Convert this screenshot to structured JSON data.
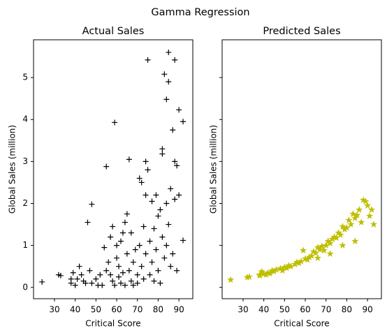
{
  "figure_title": "Gamma Regression",
  "chart_data": [
    {
      "type": "scatter",
      "title": "Actual Sales",
      "xlabel": "Critical Score",
      "ylabel": "Global Sales (million)",
      "xlim": [
        19.9,
        96.7
      ],
      "ylim": [
        -0.27,
        5.9
      ],
      "xticks": [
        30,
        40,
        50,
        60,
        70,
        80,
        90
      ],
      "yticks": [
        0,
        1,
        2,
        3,
        4,
        5
      ],
      "ytick_labels_shown": true,
      "series": [
        {
          "color": "#000000",
          "marker": "plus",
          "x": [
            24,
            32,
            33,
            38,
            38,
            39,
            40,
            41,
            42,
            43,
            44,
            45,
            46,
            47,
            48,
            48,
            50,
            51,
            52,
            53,
            54,
            55,
            55,
            56,
            57,
            57,
            58,
            58,
            59,
            59,
            60,
            60,
            61,
            61,
            62,
            62,
            63,
            63,
            64,
            64,
            65,
            65,
            66,
            66,
            67,
            67,
            68,
            68,
            69,
            70,
            70,
            71,
            71,
            72,
            72,
            73,
            73,
            74,
            74,
            74,
            75,
            75,
            76,
            76,
            77,
            77,
            78,
            78,
            79,
            79,
            80,
            80,
            81,
            81,
            82,
            82,
            82,
            83,
            83,
            84,
            84,
            84,
            85,
            85,
            85,
            86,
            86,
            87,
            87,
            88,
            88,
            88,
            89,
            89,
            90,
            90,
            92,
            92
          ],
          "values": [
            0.13,
            0.3,
            0.28,
            0.1,
            0.2,
            0.35,
            0.05,
            0.2,
            0.5,
            0.3,
            0.15,
            0.1,
            1.55,
            0.4,
            1.98,
            0.1,
            0.2,
            0.05,
            0.3,
            0.05,
            0.95,
            2.88,
            0.4,
            0.6,
            1.2,
            0.3,
            1.45,
            0.15,
            3.93,
            0.05,
            0.7,
            1.0,
            0.5,
            0.25,
            1.1,
            0.1,
            0.35,
            1.3,
            1.55,
            0.05,
            1.75,
            0.8,
            3.05,
            0.4,
            1.3,
            0.15,
            0.6,
            0.05,
            0.9,
            0.3,
            0.1,
            2.6,
            1.0,
            2.5,
            0.5,
            1.45,
            0.2,
            3.0,
            2.2,
            0.8,
            5.42,
            2.8,
            1.1,
            0.3,
            2.05,
            0.6,
            1.4,
            0.15,
            2.2,
            0.9,
            1.7,
            0.4,
            1.85,
            0.1,
            3.3,
            3.18,
            1.2,
            5.08,
            0.7,
            4.48,
            2.0,
            1.0,
            5.6,
            4.9,
            1.5,
            2.35,
            0.5,
            3.75,
            0.8,
            5.42,
            3.0,
            2.1,
            2.9,
            0.4,
            4.23,
            2.2,
            3.95,
            1.12
          ]
        }
      ]
    },
    {
      "type": "scatter",
      "title": "Predicted Sales",
      "xlabel": "Critical Score",
      "ylabel": "Global Sales (million)",
      "xlim": [
        19.9,
        96.7
      ],
      "ylim": [
        -0.27,
        5.9
      ],
      "xticks": [
        30,
        40,
        50,
        60,
        70,
        80,
        90
      ],
      "yticks": [
        0,
        1,
        2,
        3,
        4,
        5
      ],
      "ytick_labels_shown": false,
      "series": [
        {
          "color": "#bfbf00",
          "marker": "star",
          "x": [
            24,
            32,
            33,
            38,
            38,
            39,
            40,
            41,
            42,
            43,
            44,
            45,
            46,
            48,
            49,
            50,
            51,
            52,
            53,
            55,
            56,
            57,
            58,
            59,
            60,
            61,
            62,
            63,
            64,
            65,
            66,
            67,
            68,
            69,
            70,
            71,
            72,
            73,
            74,
            75,
            76,
            77,
            78,
            79,
            80,
            81,
            82,
            83,
            84,
            85,
            86,
            87,
            88,
            89,
            90,
            91,
            92,
            93,
            84,
            78,
            72,
            66
          ],
          "values": [
            0.18,
            0.24,
            0.25,
            0.3,
            0.28,
            0.38,
            0.32,
            0.3,
            0.35,
            0.33,
            0.4,
            0.38,
            0.42,
            0.45,
            0.4,
            0.48,
            0.46,
            0.52,
            0.5,
            0.55,
            0.6,
            0.58,
            0.62,
            0.88,
            0.68,
            0.66,
            0.72,
            0.75,
            0.85,
            0.82,
            0.95,
            0.9,
            0.98,
            0.88,
            1.0,
            1.1,
            1.05,
            1.15,
            1.2,
            1.18,
            1.3,
            1.25,
            1.45,
            1.38,
            1.42,
            1.6,
            1.5,
            1.75,
            1.65,
            1.72,
            1.85,
            1.55,
            2.08,
            2.05,
            1.95,
            1.7,
            1.85,
            1.5,
            1.1,
            1.0,
            0.8,
            0.7
          ]
        }
      ]
    }
  ]
}
